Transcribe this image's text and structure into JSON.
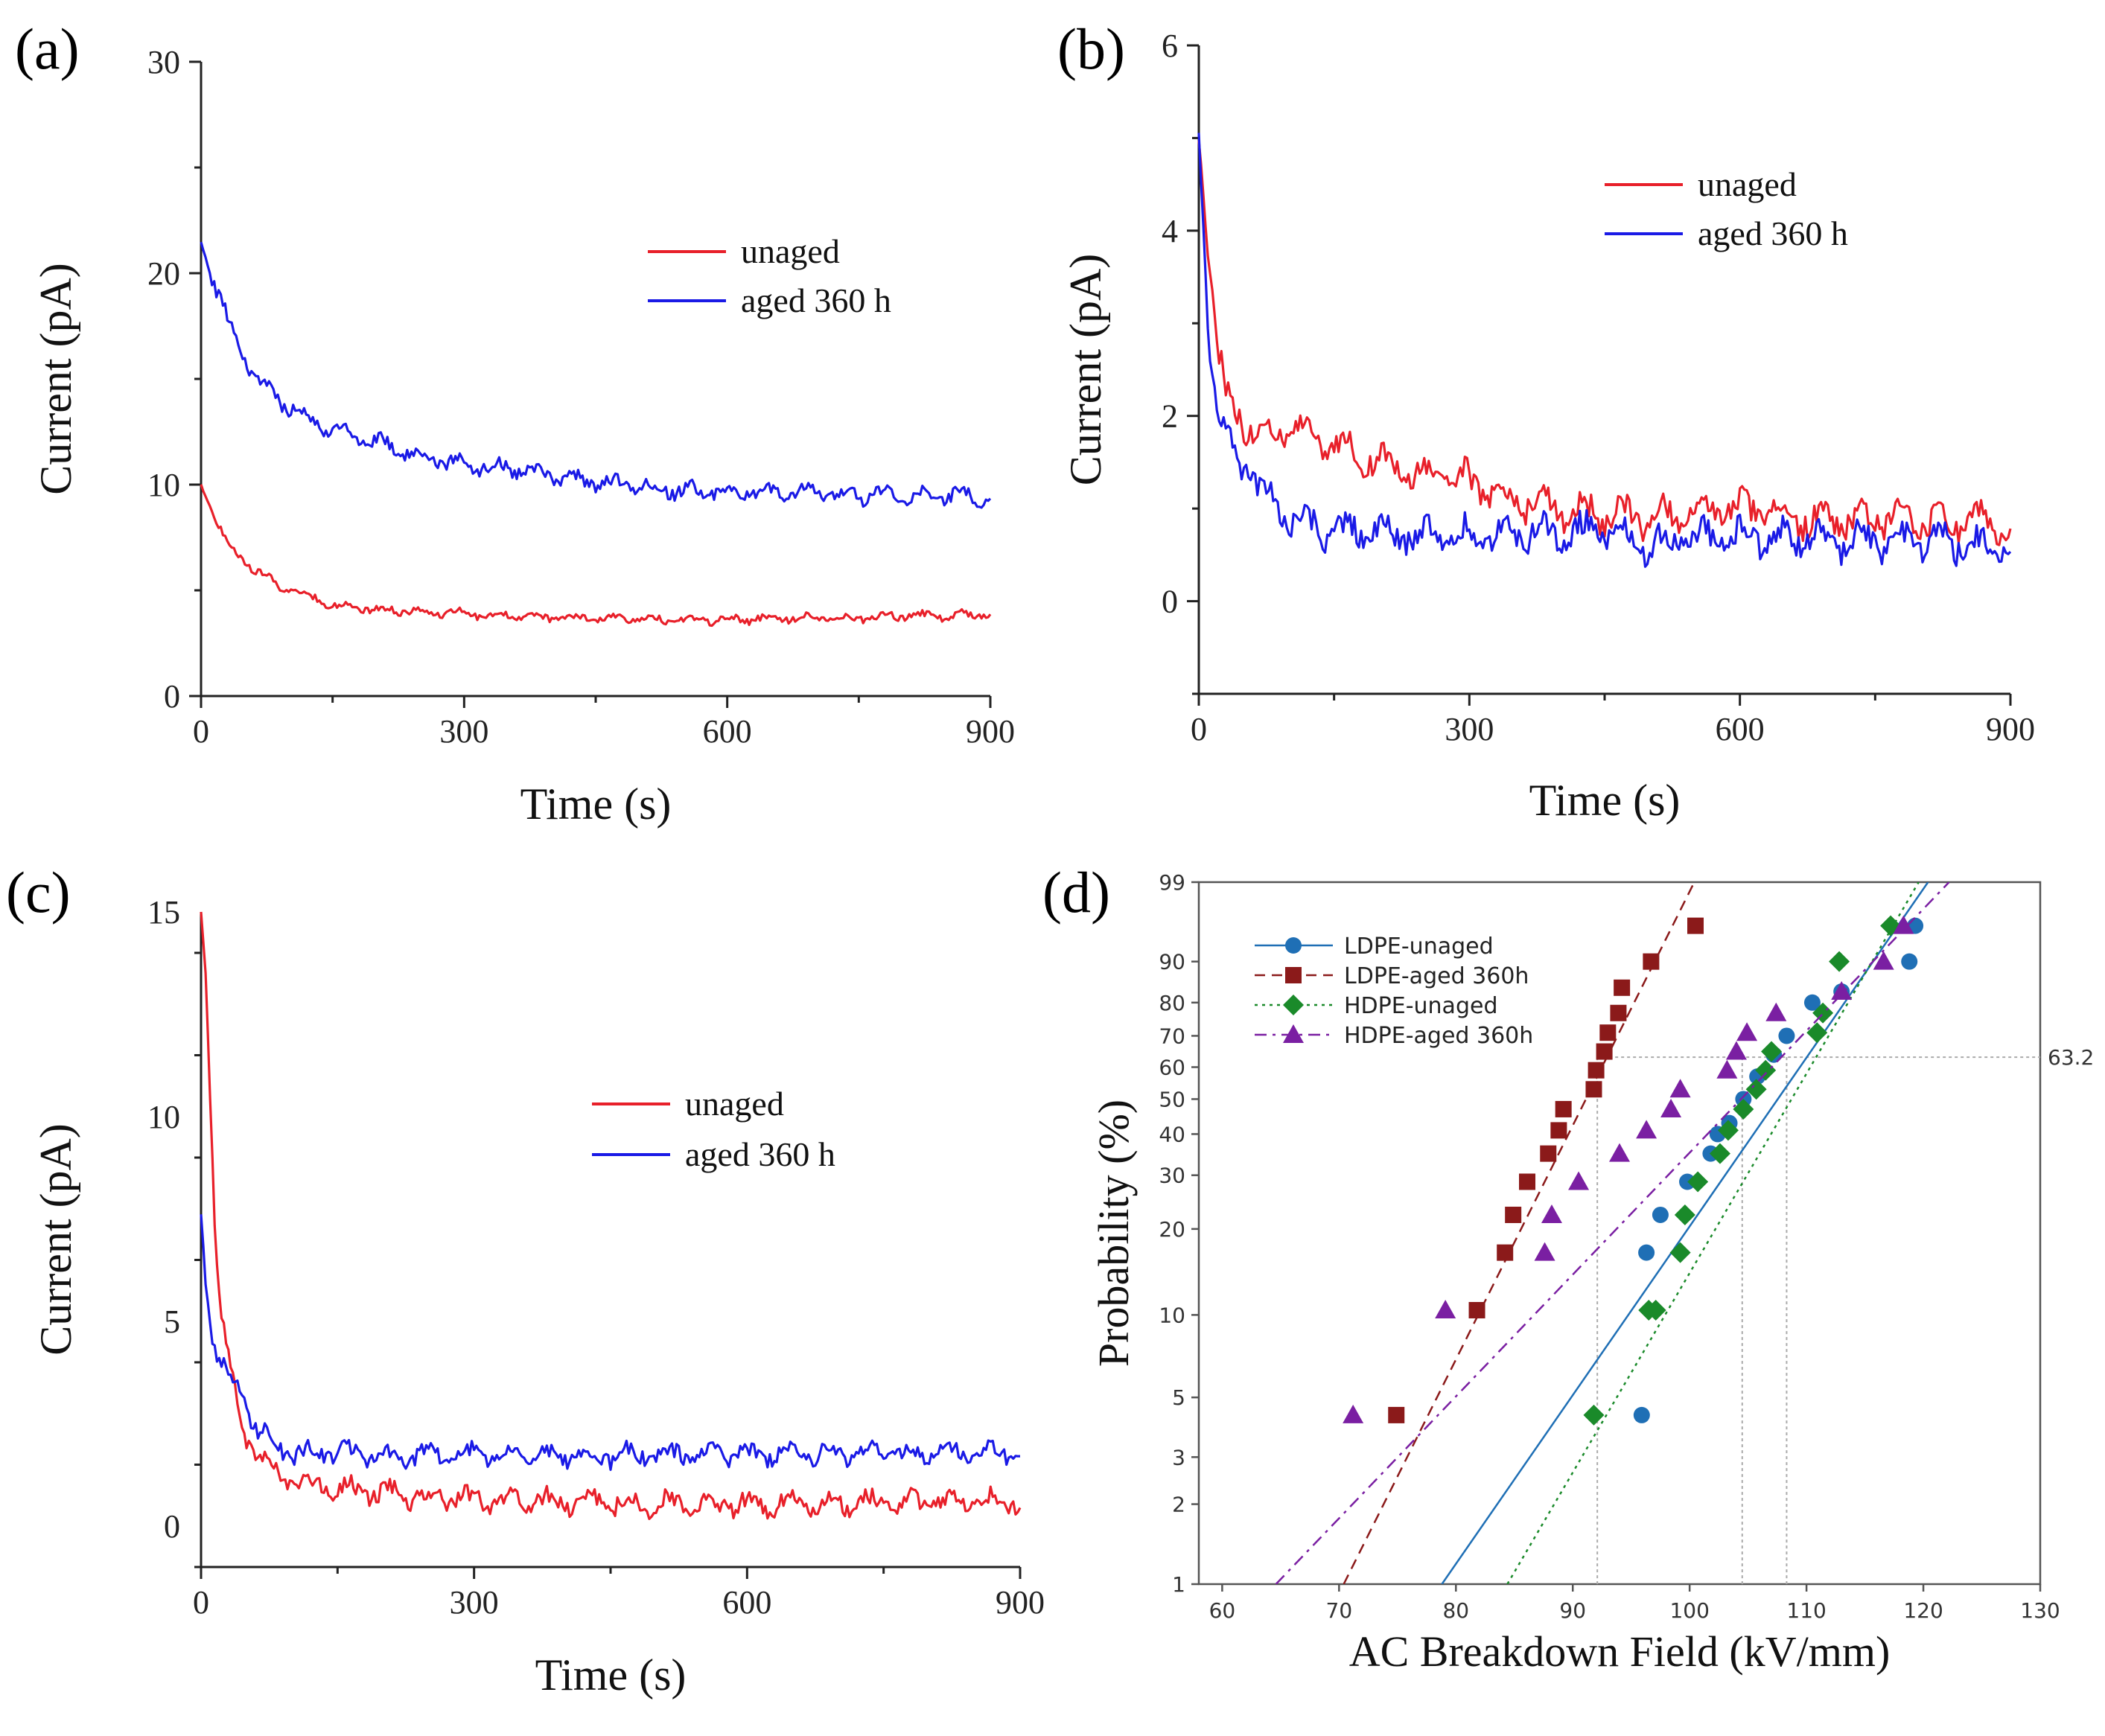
{
  "figure": {
    "panels": [
      {
        "label": "(a)"
      },
      {
        "label": "(b)"
      },
      {
        "label": "(c)"
      },
      {
        "label": "(d)"
      }
    ]
  },
  "chart_data": [
    {
      "panel": "(a)",
      "type": "line",
      "xlabel": "Time (s)",
      "ylabel": "Current (pA)",
      "xlim": [
        0,
        900
      ],
      "ylim": [
        0,
        30
      ],
      "xticks": [
        0,
        300,
        600,
        900
      ],
      "yticks": [
        0,
        10,
        20,
        30
      ],
      "legend_position": "upper-right",
      "series": [
        {
          "name": "unaged",
          "color": "#e8202a",
          "x": [
            0,
            15,
            30,
            45,
            60,
            90,
            120,
            150,
            200,
            250,
            300,
            350,
            400,
            450,
            500,
            550,
            600,
            650,
            700,
            750,
            800,
            850,
            900
          ],
          "y": [
            10,
            8.5,
            7.2,
            6.6,
            6.0,
            5.2,
            4.8,
            4.3,
            4.1,
            4.0,
            3.9,
            3.8,
            3.7,
            3.7,
            3.6,
            3.6,
            3.6,
            3.7,
            3.7,
            3.7,
            3.8,
            3.8,
            3.9
          ]
        },
        {
          "name": "aged 360 h",
          "color": "#1a1ae6",
          "x": [
            0,
            15,
            30,
            45,
            60,
            90,
            120,
            150,
            200,
            250,
            300,
            350,
            400,
            450,
            500,
            550,
            600,
            650,
            700,
            750,
            800,
            850,
            900
          ],
          "y": [
            21.5,
            19.5,
            17.8,
            16.5,
            15.2,
            14.0,
            13.2,
            12.6,
            12.0,
            11.4,
            10.9,
            10.8,
            10.5,
            10.1,
            9.9,
            9.7,
            9.7,
            9.6,
            9.6,
            9.5,
            9.5,
            9.5,
            9.4
          ]
        }
      ]
    },
    {
      "panel": "(b)",
      "type": "line",
      "xlabel": "Time (s)",
      "ylabel": "Current (pA)",
      "xlim": [
        0,
        900
      ],
      "ylim": [
        -1,
        6
      ],
      "xticks": [
        0,
        300,
        600,
        900
      ],
      "yticks": [
        0,
        2,
        4,
        6
      ],
      "legend_position": "upper-right",
      "series": [
        {
          "name": "unaged",
          "color": "#e8202a",
          "x": [
            0,
            10,
            20,
            30,
            50,
            75,
            100,
            150,
            200,
            250,
            300,
            350,
            400,
            450,
            500,
            550,
            600,
            650,
            700,
            750,
            800,
            850,
            900
          ],
          "y": [
            5.0,
            3.8,
            2.8,
            2.2,
            1.9,
            1.8,
            1.85,
            1.7,
            1.5,
            1.35,
            1.3,
            1.1,
            1.0,
            0.95,
            0.9,
            0.95,
            1.0,
            0.9,
            0.85,
            0.9,
            0.85,
            0.85,
            0.85
          ]
        },
        {
          "name": "aged 360 h",
          "color": "#1a1ae6",
          "x": [
            0,
            10,
            20,
            30,
            50,
            75,
            100,
            150,
            200,
            250,
            300,
            350,
            400,
            450,
            500,
            550,
            600,
            650,
            700,
            750,
            800,
            850,
            900
          ],
          "y": [
            5.1,
            3.0,
            2.1,
            1.7,
            1.5,
            1.1,
            0.9,
            0.75,
            0.75,
            0.7,
            0.7,
            0.75,
            0.75,
            0.75,
            0.6,
            0.7,
            0.7,
            0.7,
            0.65,
            0.65,
            0.65,
            0.6,
            0.6
          ]
        }
      ]
    },
    {
      "panel": "(c)",
      "type": "line",
      "xlabel": "Time (s)",
      "ylabel": "Current (pA)",
      "xlim": [
        0,
        900
      ],
      "ylim": [
        -1,
        15
      ],
      "xticks": [
        0,
        300,
        600,
        900
      ],
      "yticks": [
        0,
        5,
        10,
        15
      ],
      "legend_position": "upper-right",
      "series": [
        {
          "name": "unaged",
          "color": "#e8202a",
          "x": [
            0,
            5,
            10,
            15,
            20,
            30,
            40,
            50,
            60,
            80,
            100,
            150,
            200,
            250,
            300,
            400,
            500,
            600,
            700,
            800,
            900
          ],
          "y": [
            15,
            13.5,
            10.5,
            7.5,
            5.5,
            4.0,
            3.0,
            2.2,
            1.8,
            1.3,
            1.1,
            0.9,
            0.8,
            0.7,
            0.65,
            0.6,
            0.55,
            0.55,
            0.55,
            0.6,
            0.6
          ]
        },
        {
          "name": "aged 360 h",
          "color": "#1a1ae6",
          "x": [
            0,
            5,
            10,
            15,
            20,
            30,
            40,
            50,
            60,
            80,
            100,
            150,
            200,
            250,
            300,
            400,
            500,
            600,
            700,
            800,
            900
          ],
          "y": [
            7.6,
            6.0,
            5.0,
            4.4,
            4.0,
            3.6,
            3.4,
            3.0,
            2.4,
            2.0,
            1.8,
            1.8,
            1.7,
            1.75,
            1.75,
            1.7,
            1.75,
            1.75,
            1.75,
            1.8,
            1.85
          ]
        }
      ]
    },
    {
      "panel": "(d)",
      "type": "scatter",
      "subtype": "weibull-probability-plot",
      "xlabel": "AC Breakdown Field (kV/mm)",
      "ylabel": "Probability (%)",
      "xlim": [
        58,
        130
      ],
      "ylim": [
        1,
        99
      ],
      "xticks": [
        60,
        70,
        80,
        90,
        100,
        110,
        120,
        130
      ],
      "yticks": [
        1,
        2,
        3,
        5,
        10,
        20,
        30,
        40,
        50,
        60,
        70,
        80,
        90,
        99
      ],
      "reference_line": {
        "probability": 63.2,
        "label": "63.2"
      },
      "characteristic_values": [
        92.1,
        104.5,
        108.3
      ],
      "legend_position": "upper-left",
      "series": [
        {
          "name": "LDPE-unaged",
          "color": "#1f6fb5",
          "marker": "circle",
          "line": "solid",
          "x": [
            95.9,
            96.3,
            97.5,
            99.8,
            101.8,
            102.4,
            103.4,
            104.6,
            105.8,
            107.2,
            108.3,
            110.5,
            113.0,
            118.8,
            119.3
          ],
          "y": [
            4.3,
            16.6,
            22.3,
            28.6,
            35.0,
            40.0,
            43.0,
            50.0,
            57.0,
            64.0,
            70.0,
            80.0,
            83.0,
            90.0,
            95.7
          ],
          "fit": {
            "x": [
              78.8,
              120.4
            ],
            "y": [
              1,
              99
            ]
          }
        },
        {
          "name": "LDPE-aged 360h",
          "color": "#8b1a1a",
          "marker": "square",
          "line": "dashed",
          "x": [
            74.9,
            81.8,
            84.2,
            84.9,
            86.1,
            87.9,
            88.8,
            89.2,
            91.8,
            92.0,
            92.7,
            93.0,
            93.9,
            94.2,
            96.7,
            100.5
          ],
          "y": [
            4.3,
            10.4,
            16.6,
            22.3,
            28.6,
            35.0,
            41.0,
            47.0,
            53.0,
            59.0,
            65.0,
            71.0,
            77.0,
            84.0,
            90.0,
            95.7
          ],
          "fit": {
            "x": [
              70.4,
              100.4
            ],
            "y": [
              1,
              99
            ]
          }
        },
        {
          "name": "HDPE-unaged",
          "color": "#1a8a2a",
          "marker": "diamond",
          "line": "dotted",
          "x": [
            91.8,
            96.5,
            97.1,
            99.2,
            99.6,
            100.7,
            102.6,
            103.3,
            104.6,
            105.7,
            106.5,
            107.0,
            110.9,
            111.4,
            112.8,
            117.2
          ],
          "y": [
            4.3,
            10.4,
            10.4,
            16.6,
            22.3,
            28.6,
            35.0,
            41.0,
            47.0,
            53.0,
            59.0,
            65.0,
            71.0,
            77.0,
            90.0,
            95.7
          ],
          "fit": {
            "x": [
              84.4,
              119.6
            ],
            "y": [
              1,
              99
            ]
          }
        },
        {
          "name": "HDPE-aged 360h",
          "color": "#7a1fa2",
          "marker": "triangle",
          "line": "dash-dot",
          "x": [
            71.2,
            79.1,
            87.6,
            88.2,
            90.5,
            94.0,
            96.3,
            98.4,
            99.2,
            103.2,
            104.0,
            104.9,
            107.4,
            113.0,
            116.6,
            118.3
          ],
          "y": [
            4.3,
            10.4,
            16.6,
            22.3,
            28.6,
            35.0,
            41.0,
            47.0,
            53.0,
            59.0,
            65.0,
            71.0,
            77.0,
            83.0,
            90.0,
            95.7
          ],
          "fit": {
            "x": [
              64.6,
              122.2
            ],
            "y": [
              1,
              99
            ]
          }
        }
      ]
    }
  ]
}
